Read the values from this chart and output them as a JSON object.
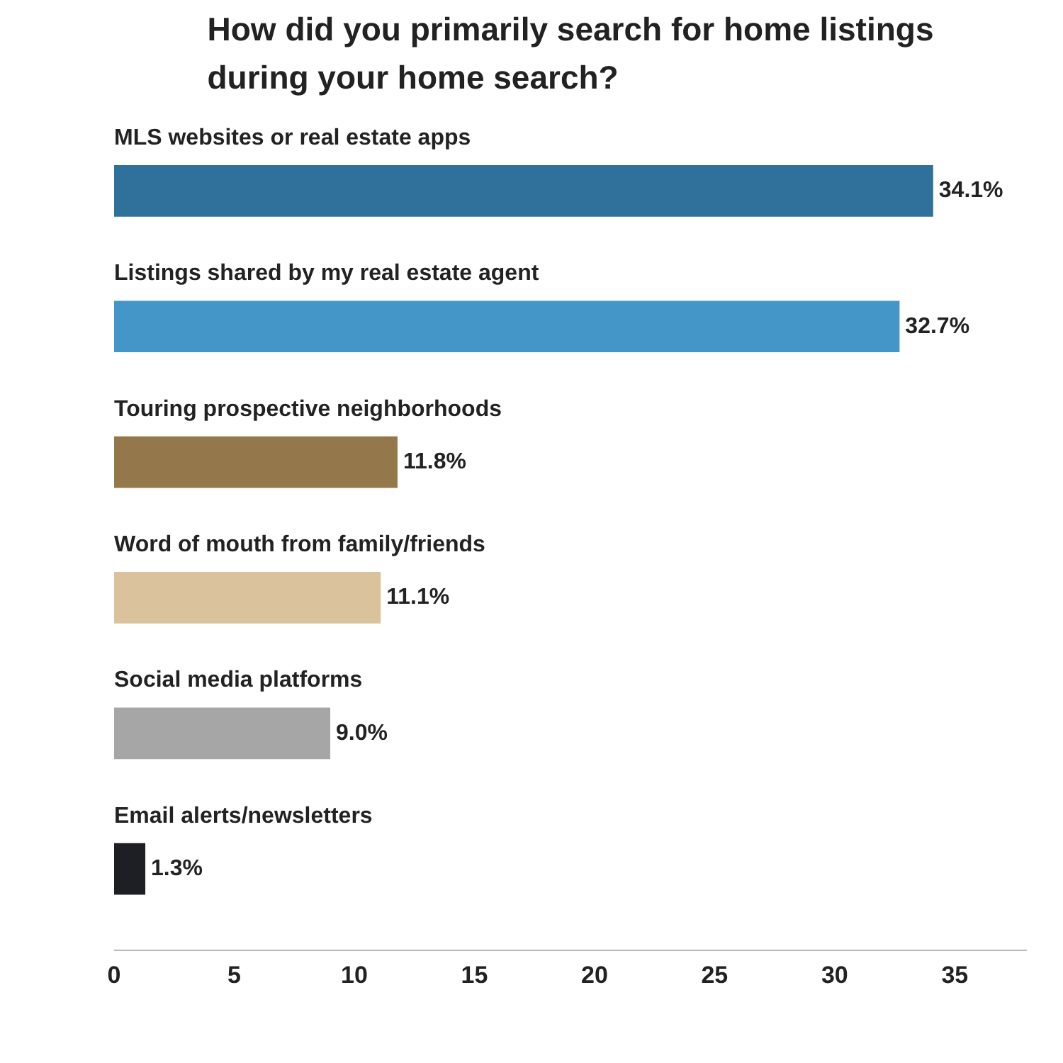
{
  "chart_data": {
    "type": "bar",
    "orientation": "horizontal",
    "title": "How did you primarily search for home listings during your home search?",
    "categories": [
      "MLS websites or real estate apps",
      "Listings shared by my real estate agent",
      "Touring prospective neighborhoods",
      "Word of mouth from family/friends",
      "Social media platforms",
      "Email alerts/newsletters"
    ],
    "values": [
      34.1,
      32.7,
      11.8,
      11.1,
      9.0,
      1.3
    ],
    "colors": [
      "#30719b",
      "#4596c8",
      "#94774a",
      "#d9c29c",
      "#a6a6a6",
      "#1d1f24"
    ],
    "value_labels": [
      "34.1%",
      "32.7%",
      "11.8%",
      "11.1%",
      "9.0%",
      "1.3%"
    ],
    "xlim": [
      0,
      38
    ],
    "xticks": [
      0,
      5,
      10,
      15,
      20,
      25,
      30,
      35
    ],
    "grid": false
  }
}
